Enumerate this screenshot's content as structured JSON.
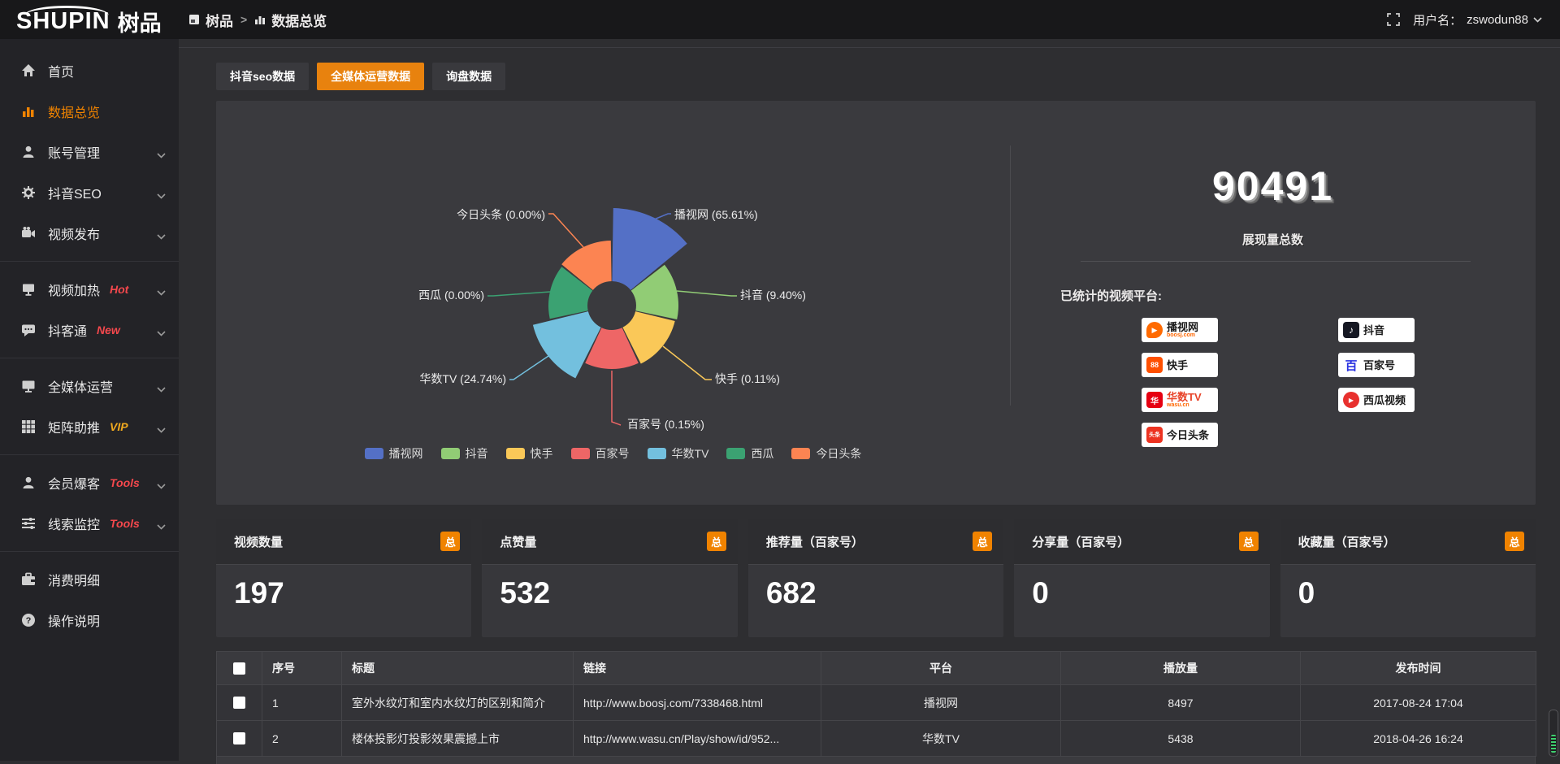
{
  "topbar": {
    "logo_en": "SHUPIN",
    "logo_cn": "树品",
    "breadcrumb": [
      "树品",
      "数据总览"
    ],
    "breadcrumb_sep": ">",
    "username_label": "用户名：",
    "username": "zswodun88"
  },
  "sidebar": {
    "items": [
      {
        "key": "home",
        "label": "首页",
        "icon": "home-icon"
      },
      {
        "key": "data-overview",
        "label": "数据总览",
        "icon": "chart-bar-icon",
        "active": true
      },
      {
        "key": "account-management",
        "label": "账号管理",
        "icon": "user-icon",
        "expandable": true
      },
      {
        "key": "douyin-seo",
        "label": "抖音SEO",
        "icon": "gear-icon",
        "expandable": true
      },
      {
        "key": "video-publish",
        "label": "视频发布",
        "icon": "video-camera-icon",
        "expandable": true,
        "divider_after": true
      },
      {
        "key": "video-heat",
        "label": "视频加热",
        "icon": "screen-icon",
        "badge": "Hot",
        "badge_color": "#f5484d",
        "expandable": true
      },
      {
        "key": "douketong",
        "label": "抖客通",
        "icon": "chat-icon",
        "badge": "New",
        "badge_color": "#f5484d",
        "expandable": true,
        "divider_after": true
      },
      {
        "key": "omni-media",
        "label": "全媒体运营",
        "icon": "monitor-icon",
        "expandable": true
      },
      {
        "key": "matrix-boost",
        "label": "矩阵助推",
        "icon": "grid-icon",
        "badge": "VIP",
        "badge_color": "#f0a91e",
        "expandable": true,
        "divider_after": true
      },
      {
        "key": "member-baoke",
        "label": "会员爆客",
        "icon": "user-icon",
        "badge": "Tools",
        "badge_color": "#f5484d",
        "expandable": true
      },
      {
        "key": "lead-monitor",
        "label": "线索监控",
        "icon": "sliders-icon",
        "badge": "Tools",
        "badge_color": "#f5484d",
        "expandable": true,
        "divider_after": true
      },
      {
        "key": "consume-detail",
        "label": "消费明细",
        "icon": "wallet-icon"
      },
      {
        "key": "operation-guide",
        "label": "操作说明",
        "icon": "question-icon"
      }
    ]
  },
  "tabs": [
    {
      "key": "douyin-seo-data",
      "label": "抖音seo数据",
      "active": false
    },
    {
      "key": "omni-media-data",
      "label": "全媒体运营数据",
      "active": true
    },
    {
      "key": "inquiry-data",
      "label": "询盘数据",
      "active": false
    }
  ],
  "chart_data": {
    "type": "pie",
    "subtype": "nightingale-rose",
    "categories": [
      "播视网",
      "抖音",
      "快手",
      "百家号",
      "华数TV",
      "西瓜",
      "今日头条"
    ],
    "values_percent": [
      65.61,
      9.4,
      0.11,
      0.15,
      24.74,
      0.0,
      0.0
    ],
    "labels": [
      "播视网 (65.61%)",
      "抖音 (9.40%)",
      "快手 (0.11%)",
      "百家号 (0.15%)",
      "华数TV (24.74%)",
      "西瓜 (0.00%)",
      "今日头条 (0.00%)"
    ],
    "colors": [
      "#5470c6",
      "#91cc75",
      "#fac858",
      "#ee6666",
      "#73c0de",
      "#3ba272",
      "#fc8452"
    ],
    "legend": [
      "播视网",
      "抖音",
      "快手",
      "百家号",
      "华数TV",
      "西瓜",
      "今日头条"
    ],
    "legend_position": "bottom",
    "display_radii": [
      120,
      82,
      80,
      78,
      100,
      78,
      80
    ],
    "inner_radius": 30
  },
  "summary": {
    "total": "90491",
    "total_label": "展现量总数",
    "platforms_label": "已统计的视频平台:",
    "platforms_left": [
      {
        "name": "播视网",
        "sub": "boosj.com",
        "icon": "boosj-logo"
      },
      {
        "name": "快手",
        "icon": "kuaishou-logo"
      },
      {
        "name": "华数TV",
        "sub": "wasu.cn",
        "icon": "wasu-logo"
      },
      {
        "name": "今日头条",
        "icon": "toutiao-logo"
      }
    ],
    "platforms_right": [
      {
        "name": "抖音",
        "icon": "douyin-logo"
      },
      {
        "name": "百家号",
        "icon": "baijiahao-logo"
      },
      {
        "name": "西瓜视频",
        "icon": "xigua-logo"
      }
    ]
  },
  "stat_cards": [
    {
      "title": "视频数量",
      "value": "197",
      "badge": "总"
    },
    {
      "title": "点赞量",
      "value": "532",
      "badge": "总"
    },
    {
      "title": "推荐量（百家号）",
      "value": "682",
      "badge": "总"
    },
    {
      "title": "分享量（百家号）",
      "value": "0",
      "badge": "总"
    },
    {
      "title": "收藏量（百家号）",
      "value": "0",
      "badge": "总"
    }
  ],
  "table": {
    "headers": [
      "序号",
      "标题",
      "链接",
      "平台",
      "播放量",
      "发布时间"
    ],
    "rows": [
      {
        "index": "1",
        "title": "室外水纹灯和室内水纹灯的区别和简介",
        "link": "http://www.boosj.com/7338468.html",
        "platform": "播视网",
        "plays": "8497",
        "time": "2017-08-24 17:04"
      },
      {
        "index": "2",
        "title": "楼体投影灯投影效果震撼上市",
        "link": "http://www.wasu.cn/Play/show/id/952...",
        "platform": "华数TV",
        "plays": "5438",
        "time": "2018-04-26 16:24"
      }
    ]
  }
}
